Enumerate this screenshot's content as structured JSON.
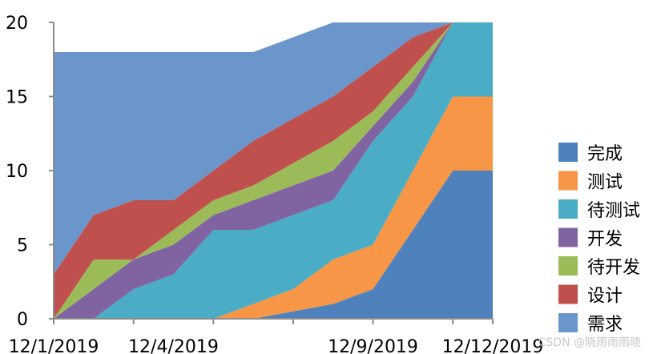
{
  "chart_data": {
    "type": "area",
    "stacked": true,
    "x": [
      "12/1/2019",
      "12/2/2019",
      "12/3/2019",
      "12/4/2019",
      "12/5/2019",
      "12/6/2019",
      "12/7/2019",
      "12/8/2019",
      "12/9/2019",
      "12/10/2019",
      "12/11/2019",
      "12/12/2019"
    ],
    "x_tick_labels": [
      "12/1/2019",
      "12/4/2019",
      "12/9/2019",
      "12/12/2019"
    ],
    "y_ticks": [
      "0",
      "5",
      "10",
      "15",
      "20"
    ],
    "ylim": [
      0,
      20
    ],
    "title": "",
    "xlabel": "",
    "ylabel": "",
    "grid": false,
    "legend_position": "right",
    "series": [
      {
        "name": "完成",
        "color": "#4f81bd",
        "values": [
          0,
          0,
          0,
          0,
          0,
          0,
          0.5,
          1,
          2,
          6,
          10,
          10
        ]
      },
      {
        "name": "测试",
        "color": "#f79646",
        "values": [
          0,
          0,
          0,
          0,
          0,
          1,
          1.5,
          3,
          3,
          4,
          5,
          5
        ]
      },
      {
        "name": "待测试",
        "color": "#4bacc6",
        "values": [
          0,
          0,
          2,
          3,
          6,
          5,
          5,
          4,
          7,
          5,
          5,
          5
        ]
      },
      {
        "name": "开发",
        "color": "#8064a2",
        "values": [
          0,
          2,
          2,
          2,
          1,
          2,
          2,
          2,
          1,
          1,
          0,
          0
        ]
      },
      {
        "name": "待开发",
        "color": "#9bbb59",
        "values": [
          0,
          2,
          0,
          1,
          1,
          1,
          1.5,
          2,
          1,
          1,
          0,
          0
        ]
      },
      {
        "name": "设计",
        "color": "#c0504d",
        "values": [
          3,
          3,
          4,
          2,
          2,
          3,
          3,
          3,
          3,
          2,
          0,
          0
        ]
      },
      {
        "name": "需求",
        "color": "#6b96cc",
        "values": [
          15,
          11,
          10,
          10,
          8,
          6,
          5.5,
          5,
          3,
          1,
          0,
          0
        ]
      }
    ]
  },
  "watermark": "CSDN @晓雨雨雨晓"
}
